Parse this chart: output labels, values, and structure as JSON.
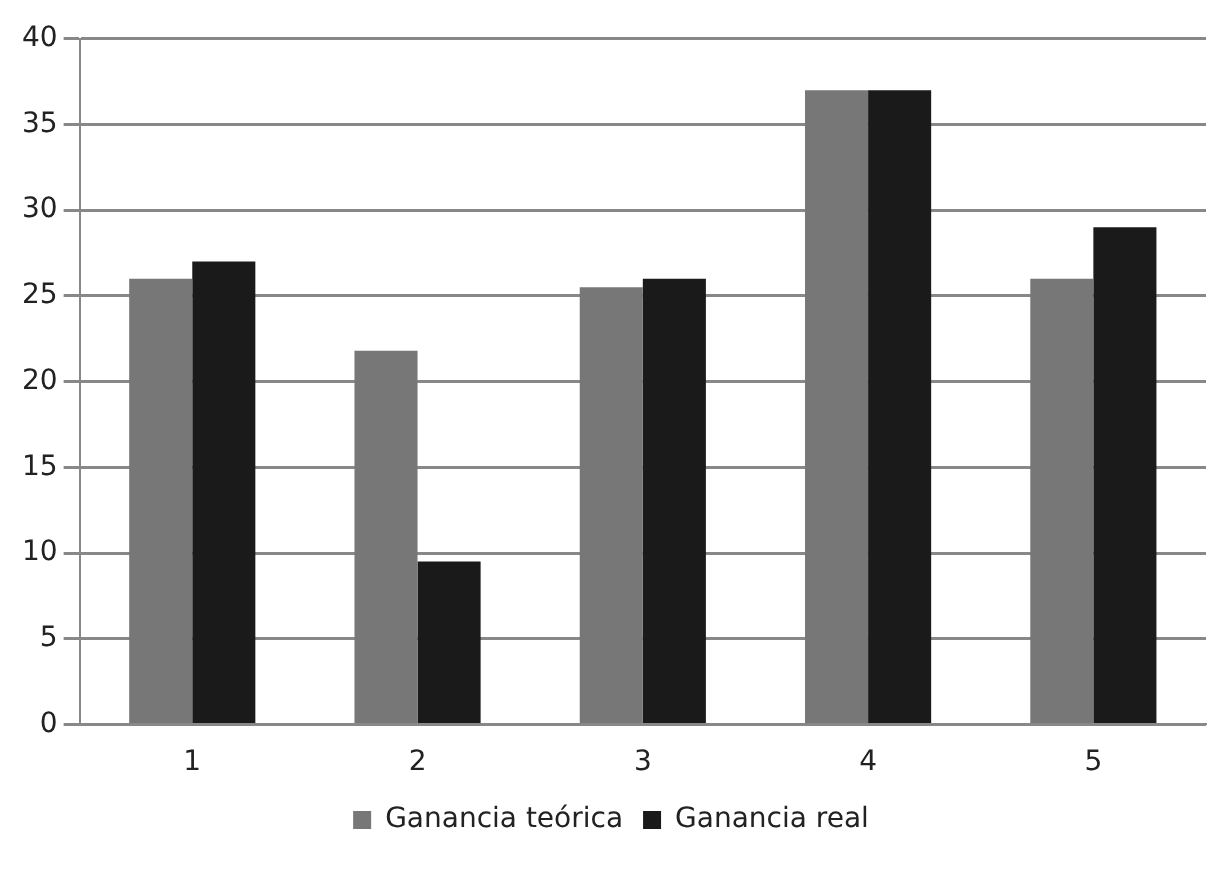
{
  "chart_data": {
    "type": "bar",
    "categories": [
      "1",
      "2",
      "3",
      "4",
      "5"
    ],
    "series": [
      {
        "name": "Ganancia teórica",
        "color": "#777777",
        "values": [
          26,
          21.8,
          25.5,
          37,
          26
        ]
      },
      {
        "name": "Ganancia real",
        "color": "#1a1a1a",
        "values": [
          27,
          9.5,
          26,
          37,
          29
        ]
      }
    ],
    "ylim": [
      0,
      40
    ],
    "yticks": [
      0,
      5,
      10,
      15,
      20,
      25,
      30,
      35,
      40
    ],
    "grid": "y",
    "legend": "bottom"
  }
}
